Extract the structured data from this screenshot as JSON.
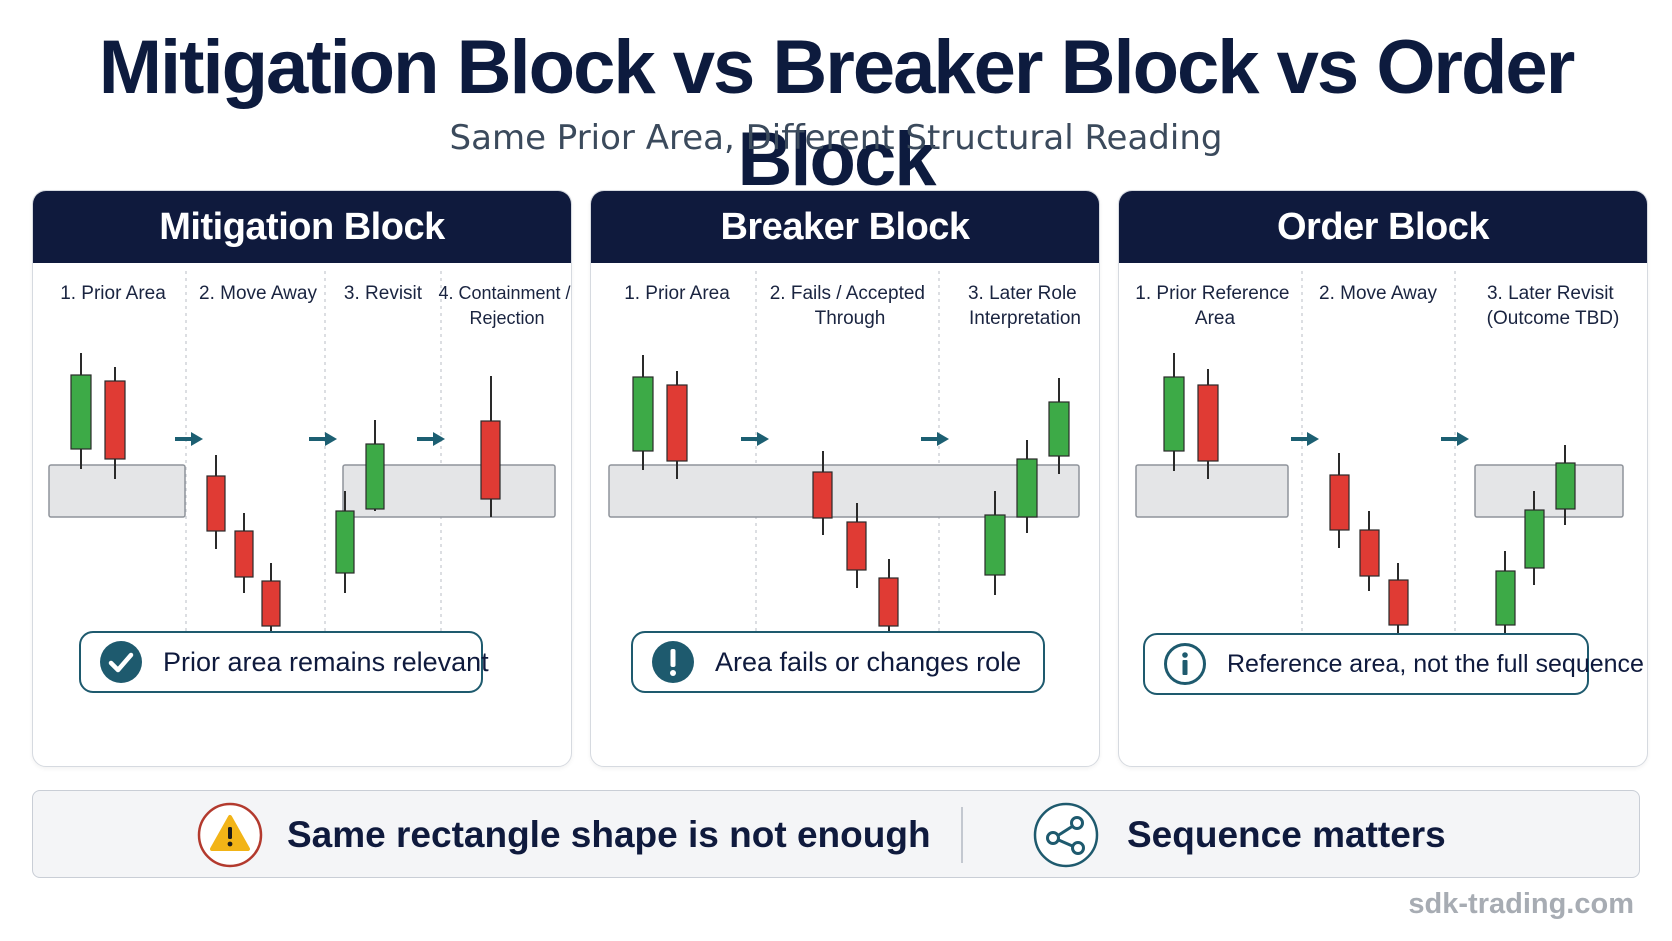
{
  "header": {
    "title": "Mitigation Block vs Breaker Block vs Order Block",
    "subtitle": "Same Prior Area, Different Structural Reading"
  },
  "colors": {
    "navy": "#0f1a3d",
    "bullish": "#3daa47",
    "bearish": "#e03b34",
    "zone_fill": "#e4e5e7",
    "arrow": "#1c5f72",
    "warning": "#f2b417"
  },
  "panels": [
    {
      "title": "Mitigation Block",
      "steps": [
        "1. Prior Area",
        "2. Move Away",
        "3. Revisit",
        "4. Containment / Rejection"
      ],
      "callout": {
        "icon": "check-icon",
        "text": "Prior area remains relevant"
      }
    },
    {
      "title": "Breaker Block",
      "steps": [
        "1. Prior Area",
        "2. Fails / Accepted Through",
        "3. Later Role Interpretation"
      ],
      "callout": {
        "icon": "exclamation-icon",
        "text": "Area fails or changes role"
      }
    },
    {
      "title": "Order Block",
      "steps": [
        "1. Prior Reference Area",
        "2. Move Away",
        "3. Later Revisit (Outcome TBD)"
      ],
      "callout": {
        "icon": "info-icon",
        "text": "Reference area, not the full sequence"
      }
    }
  ],
  "bottom": {
    "left": {
      "icon": "warning-icon",
      "text": "Same rectangle shape is not enough"
    },
    "right": {
      "icon": "share-nodes-icon",
      "text": "Sequence matters"
    }
  },
  "watermark": "sdk-trading.com"
}
